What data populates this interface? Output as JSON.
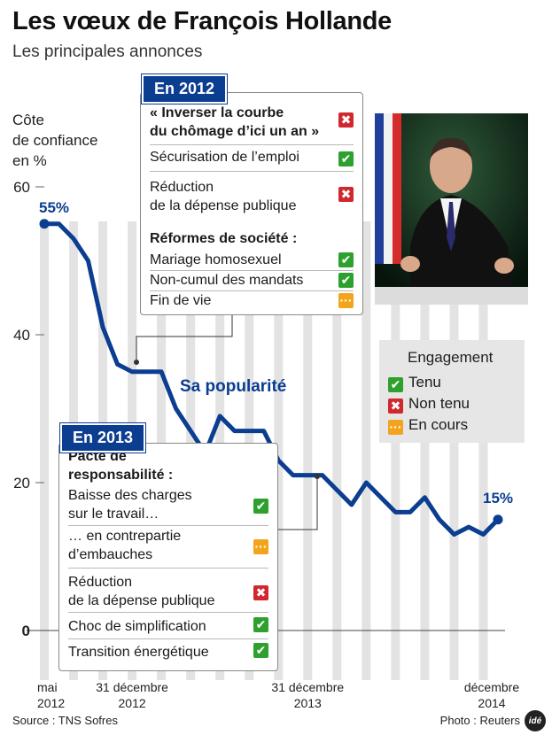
{
  "header": {
    "title": "Les vœux de François Hollande",
    "subtitle": "Les principales annonces"
  },
  "chart_data": {
    "type": "line",
    "ylabel": "Côte\nde confiance\nen %",
    "ylim": [
      -5,
      62
    ],
    "yticks": [
      0,
      20,
      40,
      60
    ],
    "grid": false,
    "xtick_labels": [
      "mai\n2012",
      "31 décembre\n2012",
      "31 décembre\n2013",
      "décembre\n2014"
    ],
    "series": [
      {
        "name": "Sa popularité",
        "color": "#0b3d91",
        "x": [
          0,
          1,
          2,
          3,
          4,
          5,
          6,
          7,
          8,
          9,
          10,
          11,
          12,
          13,
          14,
          15,
          16,
          17,
          18,
          19,
          20,
          21,
          22,
          23,
          24,
          25,
          26,
          27,
          28,
          29,
          30,
          31
        ],
        "values": [
          55,
          55,
          53,
          50,
          41,
          36,
          35,
          35,
          35,
          30,
          27,
          24,
          29,
          27,
          27,
          27,
          23,
          21,
          21,
          21,
          19,
          17,
          20,
          18,
          16,
          16,
          18,
          15,
          13,
          14,
          13,
          15
        ]
      }
    ],
    "annotations": {
      "start": "55%",
      "end": "15%",
      "series_label": "Sa popularité"
    }
  },
  "box2012": {
    "tag": "En 2012",
    "rows": [
      {
        "text": "« Inverser la courbe\ndu chômage d’ici un an »",
        "bold": true,
        "status": "no"
      },
      {
        "text": "Sécurisation de l’emploi",
        "bold": false,
        "status": "ok"
      },
      {
        "text": "Réduction\nde la dépense publique",
        "bold": false,
        "status": "no"
      },
      {
        "text": "Réformes de société :",
        "bold": true,
        "status": ""
      },
      {
        "text": "Mariage homosexuel",
        "bold": false,
        "status": "ok"
      },
      {
        "text": "Non-cumul des mandats",
        "bold": false,
        "status": "ok"
      },
      {
        "text": "Fin de vie",
        "bold": false,
        "status": "pend"
      }
    ]
  },
  "box2013": {
    "tag": "En 2013",
    "rows": [
      {
        "text": "Pacte de\nresponsabilité :",
        "bold": true,
        "status": ""
      },
      {
        "text": "Baisse des charges\nsur le travail…",
        "bold": false,
        "status": "ok"
      },
      {
        "text": "… en contrepartie\nd’embauches",
        "bold": false,
        "status": "pend"
      },
      {
        "text": "Réduction\nde la dépense publique",
        "bold": false,
        "status": "no"
      },
      {
        "text": "Choc de simplification",
        "bold": false,
        "status": "ok"
      },
      {
        "text": "Transition énergétique",
        "bold": false,
        "status": "ok"
      }
    ]
  },
  "legend": {
    "title": "Engagement",
    "items": [
      {
        "label": "Tenu",
        "status": "ok"
      },
      {
        "label": "Non tenu",
        "status": "no"
      },
      {
        "label": "En cours",
        "status": "pend"
      }
    ]
  },
  "status_symbols": {
    "ok": "✔",
    "no": "✖",
    "pend": "···"
  },
  "colors": {
    "line": "#0b3d91",
    "ok": "#2ea02e",
    "no": "#d0282e",
    "pend": "#f3a41d",
    "bars": "#e3e3e3",
    "flag_blue": "#1f3f9a",
    "flag_red": "#d52b2b"
  },
  "footer": {
    "source": "Source : TNS Sofres",
    "credit": "Photo : Reuters",
    "logo": "idé"
  }
}
